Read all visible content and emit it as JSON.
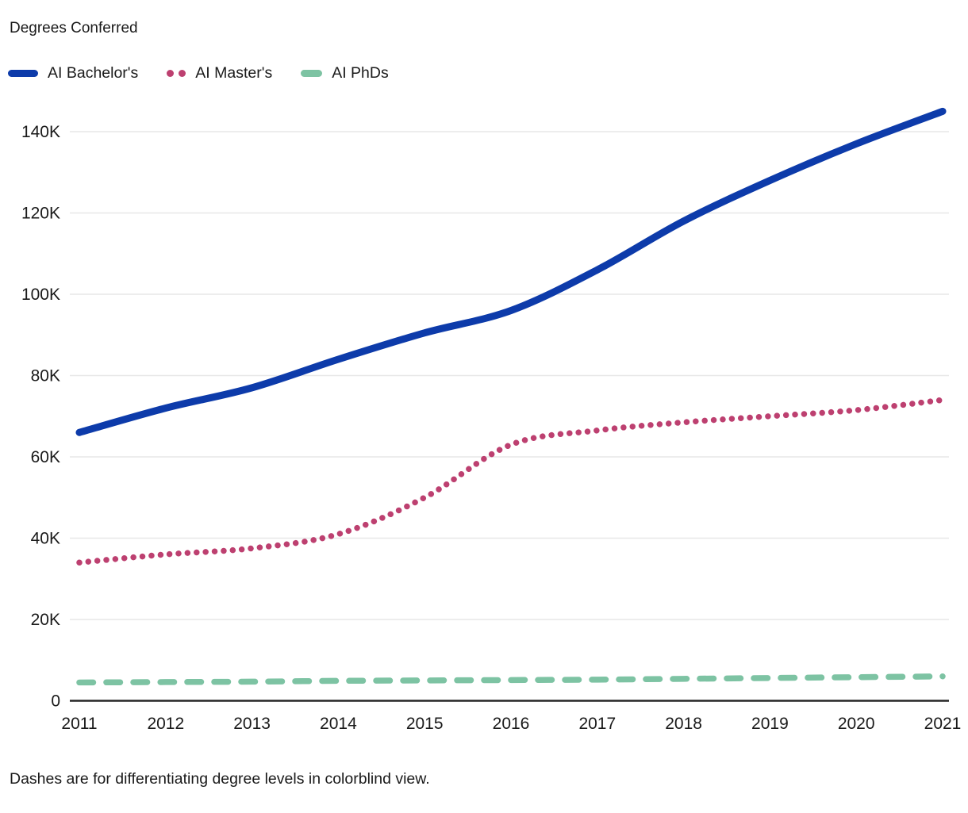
{
  "page": {
    "background": "#ffffff",
    "text_color": "#1a1a1a"
  },
  "header": {
    "title": "Degrees Conferred"
  },
  "footnote": "Dashes are for differentiating degree levels in colorblind view.",
  "chart_data": {
    "type": "line",
    "title": "Degrees Conferred",
    "x": [
      2011,
      2012,
      2013,
      2014,
      2015,
      2016,
      2017,
      2018,
      2019,
      2020,
      2021
    ],
    "series": [
      {
        "name": "AI Bachelor's",
        "color": "#0d3baa",
        "style": "solid",
        "values": [
          66000,
          72000,
          77000,
          84000,
          90500,
          96000,
          106000,
          118000,
          128000,
          137000,
          145000
        ]
      },
      {
        "name": "AI Master's",
        "color": "#bd4070",
        "style": "dotted",
        "values": [
          34000,
          36000,
          37500,
          41000,
          50000,
          63000,
          66500,
          68500,
          70000,
          71500,
          74000
        ]
      },
      {
        "name": "AI PhDs",
        "color": "#7dc3a3",
        "style": "dashed",
        "values": [
          4500,
          4600,
          4700,
          4900,
          5000,
          5100,
          5200,
          5400,
          5600,
          5800,
          6000
        ]
      }
    ],
    "y_ticks": [
      {
        "value": 0,
        "label": "0"
      },
      {
        "value": 20000,
        "label": "20K"
      },
      {
        "value": 40000,
        "label": "40K"
      },
      {
        "value": 60000,
        "label": "60K"
      },
      {
        "value": 80000,
        "label": "80K"
      },
      {
        "value": 100000,
        "label": "100K"
      },
      {
        "value": 120000,
        "label": "120K"
      },
      {
        "value": 140000,
        "label": "140K"
      }
    ],
    "ylim": [
      0,
      145000
    ],
    "grid": "horizontal",
    "grid_color": "#e7e7e7",
    "axis_color": "#262626",
    "legend_position": "top-left"
  }
}
